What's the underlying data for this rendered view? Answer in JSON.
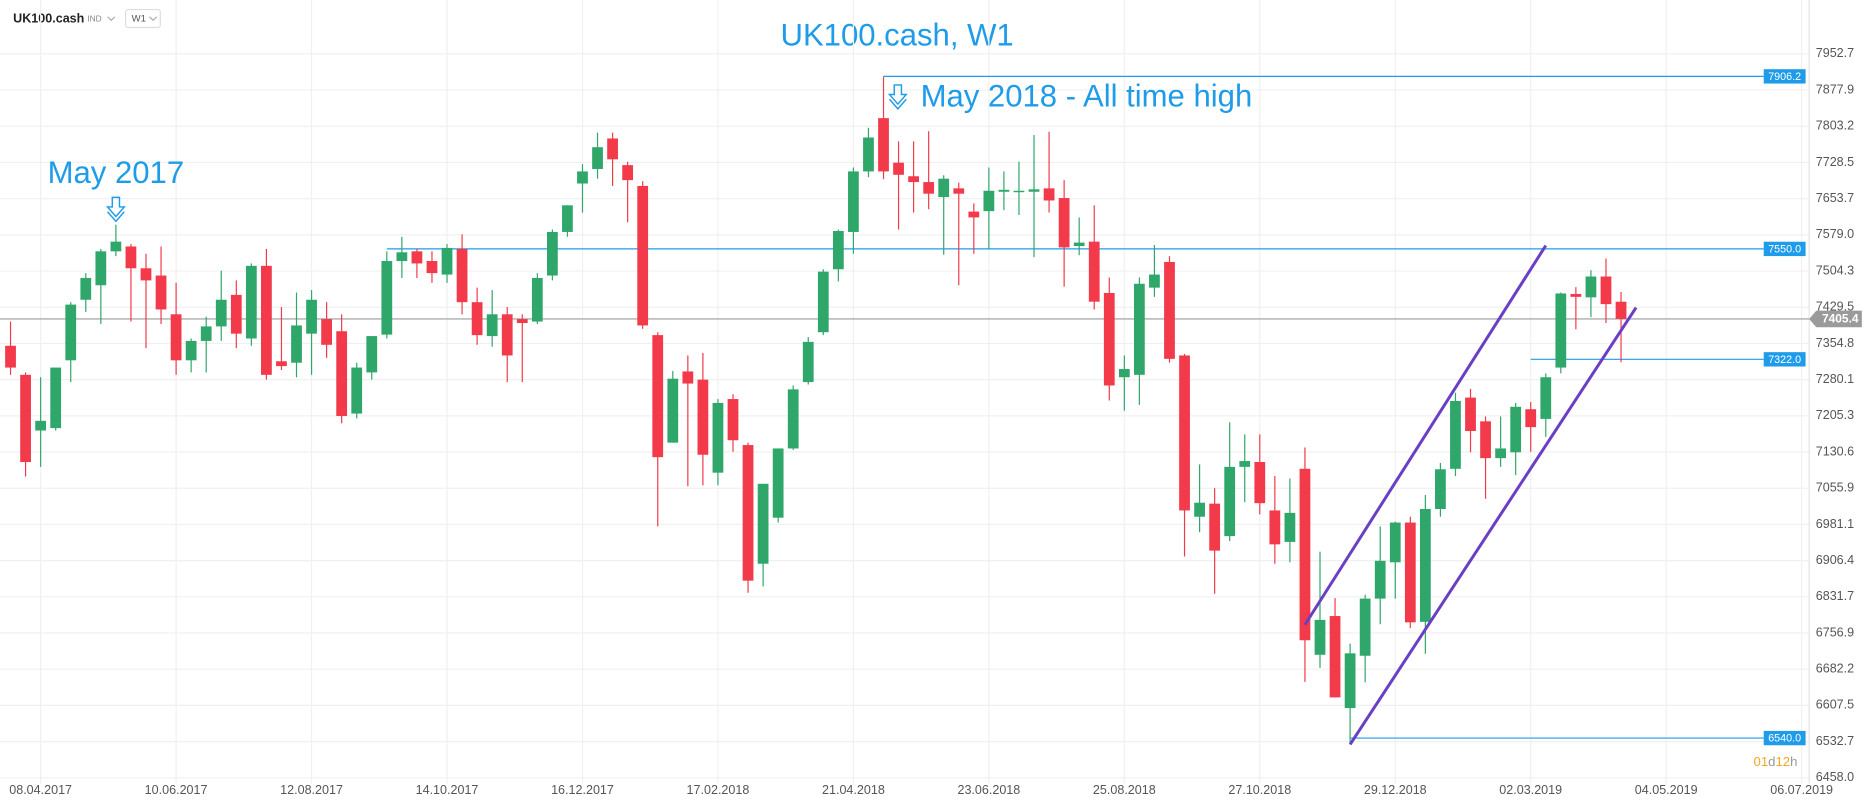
{
  "toolbar": {
    "symbol": "UK100.cash",
    "group": "IND",
    "timeframe": "W1"
  },
  "chart_data": {
    "type": "candlestick",
    "title": "UK100.cash, W1",
    "up_color": "#2fa76b",
    "down_color": "#f23a4a",
    "grid": true,
    "categories": [
      null,
      null,
      "08.04.2017",
      null,
      null,
      null,
      null,
      null,
      null,
      null,
      null,
      "10.06.2017",
      null,
      null,
      null,
      null,
      null,
      null,
      null,
      null,
      "12.08.2017",
      null,
      null,
      null,
      null,
      null,
      null,
      null,
      null,
      "14.10.2017",
      null,
      null,
      null,
      null,
      null,
      null,
      null,
      null,
      "16.12.2017",
      null,
      null,
      null,
      null,
      null,
      null,
      null,
      null,
      "17.02.2018",
      null,
      null,
      null,
      null,
      null,
      null,
      null,
      null,
      "21.04.2018",
      null,
      null,
      null,
      null,
      null,
      null,
      null,
      null,
      "23.06.2018",
      null,
      null,
      null,
      null,
      null,
      null,
      null,
      null,
      "25.08.2018",
      null,
      null,
      null,
      null,
      null,
      null,
      null,
      null,
      "27.10.2018",
      null,
      null,
      null,
      null,
      null,
      null,
      null,
      null,
      "29.12.2018",
      null,
      null,
      null,
      null,
      null,
      null,
      null,
      null,
      "02.03.2019",
      null,
      null,
      null,
      null,
      null,
      null,
      null,
      null,
      "04.05.2019",
      null,
      null,
      null,
      null,
      null,
      null,
      null,
      null,
      "06.07.2019"
    ],
    "open": [
      7350,
      7290,
      7175,
      7180,
      7320,
      7445,
      7475,
      7545,
      7555,
      7510,
      7495,
      7415,
      7320,
      7360,
      7390,
      7455,
      7365,
      7515,
      7318,
      7315,
      7375,
      7405,
      7380,
      7210,
      7295,
      7373,
      7525,
      7545,
      7525,
      7497,
      7550,
      7440,
      7370,
      7415,
      7405,
      7400,
      7495,
      7585,
      7685,
      7715,
      7778,
      7723,
      7680,
      7372,
      7150,
      7297,
      7280,
      7088,
      7240,
      7145,
      6900,
      6995,
      7138,
      7275,
      7378,
      7508,
      7585,
      7710,
      7820,
      7728,
      7700,
      7688,
      7657,
      7675,
      7627,
      7628,
      7668,
      7670,
      7668,
      7675,
      7655,
      7556,
      7565,
      7459,
      7285,
      7290,
      7470,
      7523,
      7330,
      6997,
      7024,
      6957,
      7100,
      7110,
      7010,
      6945,
      7096,
      6712,
      6792,
      6602,
      6710,
      6828,
      6903,
      6985,
      6780,
      7013,
      7096,
      7243,
      7194,
      7118,
      7130,
      7219,
      7199,
      7305,
      7457,
      7450,
      7493,
      7441,
      null,
      null,
      null,
      null,
      null,
      null,
      null,
      null,
      null,
      null,
      null,
      null
    ],
    "high": [
      7400,
      7295,
      7285,
      7305,
      7440,
      7500,
      7550,
      7600,
      7560,
      7540,
      7555,
      7480,
      7365,
      7410,
      7505,
      7485,
      7520,
      7550,
      7430,
      7460,
      7465,
      7440,
      7415,
      7315,
      7370,
      7545,
      7575,
      7550,
      7545,
      7560,
      7580,
      7470,
      7465,
      7430,
      7415,
      7500,
      7590,
      7640,
      7725,
      7790,
      7790,
      7730,
      7690,
      7378,
      7298,
      7330,
      7335,
      7240,
      7250,
      7150,
      7065,
      7138,
      7268,
      7368,
      7508,
      7590,
      7718,
      7800,
      7906,
      7772,
      7772,
      7793,
      7702,
      7687,
      7644,
      7718,
      7710,
      7730,
      7785,
      7792,
      7692,
      7615,
      7640,
      7491,
      7330,
      7491,
      7558,
      7535,
      7333,
      7105,
      7056,
      7192,
      7167,
      7167,
      7081,
      7076,
      7140,
      6925,
      6829,
      6735,
      6836,
      6977,
      6987,
      6997,
      7042,
      7108,
      7253,
      7261,
      7204,
      7204,
      7232,
      7234,
      7293,
      7460,
      7471,
      7506,
      7530,
      7461,
      null,
      null,
      null,
      null,
      null,
      null,
      null,
      null,
      null,
      null,
      null,
      null
    ],
    "low": [
      7290,
      7080,
      7100,
      7175,
      7275,
      7420,
      7395,
      7535,
      7400,
      7345,
      7395,
      7290,
      7295,
      7295,
      7360,
      7345,
      7350,
      7280,
      7300,
      7285,
      7290,
      7325,
      7190,
      7200,
      7280,
      7365,
      7490,
      7490,
      7480,
      7480,
      7415,
      7352,
      7348,
      7275,
      7275,
      7395,
      7485,
      7575,
      7625,
      7695,
      7680,
      7605,
      7385,
      6977,
      7150,
      7060,
      7062,
      7062,
      7131,
      6840,
      6853,
      6985,
      7135,
      7270,
      7372,
      7483,
      7540,
      7698,
      7694,
      7590,
      7625,
      7632,
      7538,
      7475,
      7540,
      7550,
      7630,
      7620,
      7533,
      7625,
      7472,
      7537,
      7425,
      7237,
      7216,
      7228,
      7451,
      7315,
      6915,
      6965,
      6838,
      6947,
      7027,
      7002,
      6900,
      6903,
      6656,
      6685,
      6624,
      6527,
      6655,
      6775,
      6828,
      6767,
      6714,
      6997,
      7081,
      7130,
      7034,
      7100,
      7083,
      7131,
      7162,
      7293,
      7384,
      7409,
      7397,
      7316,
      null,
      null,
      null,
      null,
      null,
      null,
      null,
      null,
      null,
      null,
      null,
      null
    ],
    "close": [
      7305,
      7110,
      7195,
      7305,
      7435,
      7490,
      7545,
      7565,
      7510,
      7485,
      7425,
      7320,
      7360,
      7390,
      7445,
      7375,
      7515,
      7290,
      7308,
      7392,
      7445,
      7352,
      7205,
      7305,
      7370,
      7525,
      7543,
      7520,
      7500,
      7552,
      7440,
      7372,
      7415,
      7330,
      7397,
      7490,
      7585,
      7640,
      7710,
      7760,
      7735,
      7692,
      7392,
      7120,
      7282,
      7272,
      7125,
      7232,
      7155,
      6865,
      7065,
      7138,
      7260,
      7358,
      7503,
      7587,
      7710,
      7780,
      7710,
      7703,
      7688,
      7664,
      7695,
      7664,
      7615,
      7670,
      7672,
      7670,
      7673,
      7650,
      7553,
      7563,
      7441,
      7268,
      7302,
      7478,
      7497,
      7323,
      7010,
      7026,
      6927,
      7100,
      7112,
      7025,
      6940,
      7005,
      6742,
      6784,
      6624,
      6715,
      6828,
      6906,
      6985,
      6779,
      7013,
      7095,
      7236,
      7174,
      7118,
      7138,
      7224,
      7182,
      7285,
      7458,
      7451,
      7493,
      7436,
      7405.4,
      null,
      null,
      null,
      null,
      null,
      null,
      null,
      null,
      null,
      null,
      null,
      null
    ],
    "ylim": [
      6446.3,
      8063.9
    ],
    "yticks": [
      7952.7,
      7877.9,
      7803.2,
      7728.5,
      7653.7,
      {
        "value": 7579,
        "label": "7579.0"
      },
      7504.3,
      7429.5,
      7354.8,
      7280.1,
      7205.3,
      7130.6,
      7055.9,
      6981.1,
      6906.4,
      6831.7,
      6756.9,
      6682.2,
      6607.5,
      6532.7,
      {
        "value": 6458,
        "label": "6458.0"
      }
    ],
    "price_lines": [
      {
        "value": 7906.2,
        "start": 58,
        "color": "#1e9be9"
      },
      {
        "value": 7550,
        "label": "7550.0",
        "start": 25,
        "color": "#1e9be9"
      },
      {
        "value": 7322,
        "label": "7322.0",
        "start": 101,
        "color": "#1e9be9"
      },
      {
        "value": 6540,
        "label": "6540.0",
        "start": 89,
        "color": "#1e9be9"
      }
    ],
    "last_price": 7405.4,
    "channels": [
      {
        "from": 86,
        "p1": 6774,
        "to": 102,
        "p2": 7557,
        "color": "#6a3fc4"
      },
      {
        "from": 89,
        "p1": 6527,
        "to": 108,
        "p2": 7429,
        "color": "#6a3fc4"
      }
    ],
    "annotations": [
      {
        "text": "May 2017",
        "index": 7
      },
      {
        "text": "May 2018 - All time high",
        "index": 58
      }
    ],
    "countdown": [
      "01",
      "d",
      "12",
      "h"
    ]
  }
}
